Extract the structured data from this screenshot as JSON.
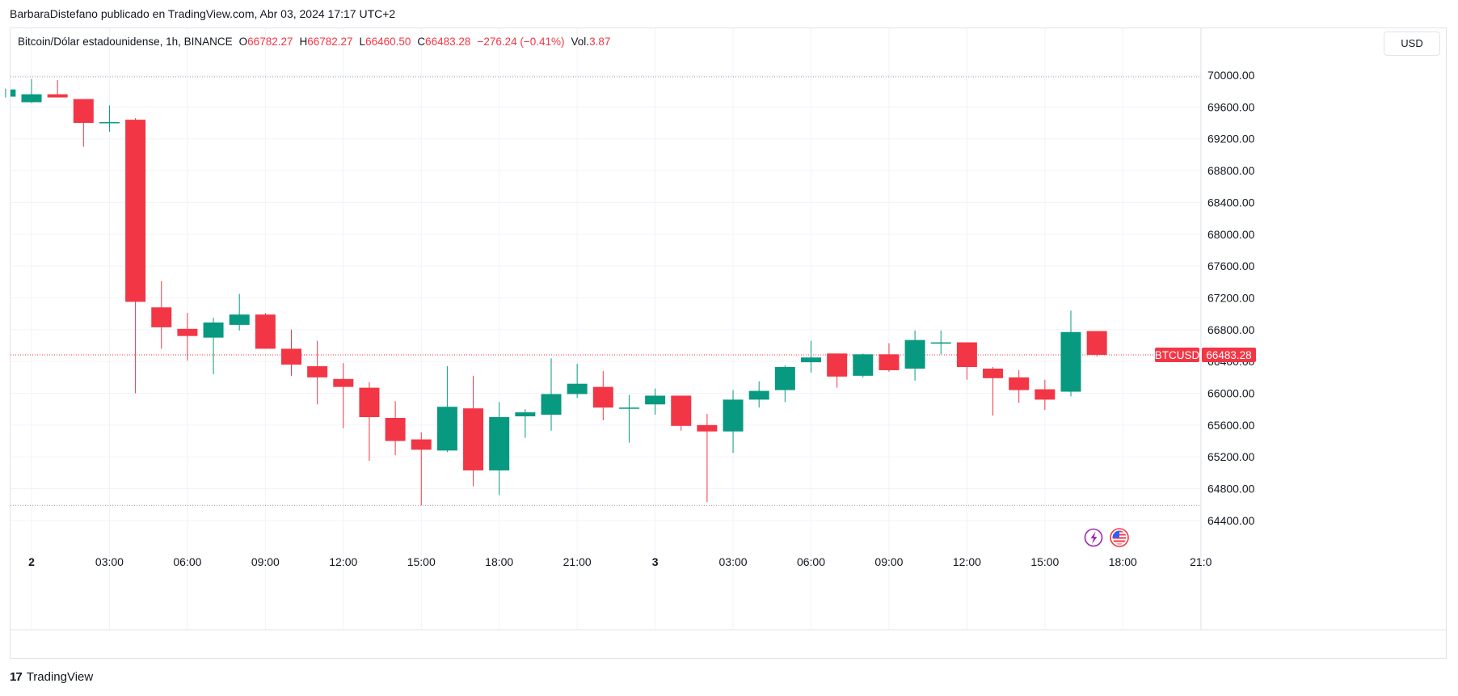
{
  "header": {
    "publisher": "BarbaraDistefano publicado en TradingView.com, Abr 03, 2024 17:17 UTC+2"
  },
  "legend": {
    "symbol": "Bitcoin/Dólar estadounidense, 1h, BINANCE",
    "o_label": "O",
    "o_value": "66782.27",
    "h_label": "H",
    "h_value": "66782.27",
    "l_label": "L",
    "l_value": "66460.50",
    "c_label": "C",
    "c_value": "66483.28",
    "change": "−276.24 (−0.41%)",
    "vol_label": "Vol.",
    "vol_value": "3.87"
  },
  "currency_button": "USD",
  "last_price": {
    "symbol": "BTCUSD",
    "value": "66483.28"
  },
  "footer": {
    "brand": "TradingView",
    "logo_mark": "17"
  },
  "colors": {
    "up": "#089981",
    "down": "#f23645",
    "grid": "#f0f3fa",
    "text": "#131722"
  },
  "icons": [
    "lightning-icon",
    "us-flag-icon"
  ],
  "chart_data": {
    "type": "candlestick",
    "interval": "1h",
    "y_ticks": [
      64400,
      64800,
      65200,
      65600,
      66000,
      66400,
      66800,
      67200,
      67600,
      68000,
      68400,
      68800,
      69200,
      69600,
      70000
    ],
    "y_tick_labels": [
      "64400.00",
      "64800.00",
      "65200.00",
      "65600.00",
      "66000.00",
      "66400.00",
      "66800.00",
      "67200.00",
      "67600.00",
      "68000.00",
      "68400.00",
      "68800.00",
      "69200.00",
      "69600.00",
      "70000.00"
    ],
    "x_tick_labels": [
      {
        "hour": 0,
        "label": "2"
      },
      {
        "hour": 3,
        "label": "03:00"
      },
      {
        "hour": 6,
        "label": "06:00"
      },
      {
        "hour": 9,
        "label": "09:00"
      },
      {
        "hour": 12,
        "label": "12:00"
      },
      {
        "hour": 15,
        "label": "15:00"
      },
      {
        "hour": 18,
        "label": "18:00"
      },
      {
        "hour": 21,
        "label": "21:00"
      },
      {
        "hour": 24,
        "label": "3"
      },
      {
        "hour": 27,
        "label": "03:00"
      },
      {
        "hour": 30,
        "label": "06:00"
      },
      {
        "hour": 33,
        "label": "09:00"
      },
      {
        "hour": 36,
        "label": "12:00"
      },
      {
        "hour": 39,
        "label": "15:00"
      },
      {
        "hour": 42,
        "label": "18:00"
      },
      {
        "hour": 45,
        "label": "21:0"
      }
    ],
    "range_high_line": 69980,
    "range_low_line": 64590,
    "last_price_value": 66483.28,
    "candles": [
      {
        "hour": -1,
        "o": 69730,
        "h": 69830,
        "l": 69720,
        "c": 69820
      },
      {
        "hour": 0,
        "o": 69660,
        "h": 69950,
        "l": 69650,
        "c": 69760
      },
      {
        "hour": 1,
        "o": 69760,
        "h": 69940,
        "l": 69720,
        "c": 69720
      },
      {
        "hour": 2,
        "o": 69700,
        "h": 69700,
        "l": 69100,
        "c": 69400
      },
      {
        "hour": 3,
        "o": 69400,
        "h": 69620,
        "l": 69290,
        "c": 69410
      },
      {
        "hour": 4,
        "o": 69440,
        "h": 69460,
        "l": 66000,
        "c": 67150
      },
      {
        "hour": 5,
        "o": 67080,
        "h": 67410,
        "l": 66560,
        "c": 66830
      },
      {
        "hour": 6,
        "o": 66810,
        "h": 67010,
        "l": 66410,
        "c": 66720
      },
      {
        "hour": 7,
        "o": 66700,
        "h": 66950,
        "l": 66240,
        "c": 66890
      },
      {
        "hour": 8,
        "o": 66860,
        "h": 67250,
        "l": 66790,
        "c": 66990
      },
      {
        "hour": 9,
        "o": 66990,
        "h": 67010,
        "l": 66560,
        "c": 66560
      },
      {
        "hour": 10,
        "o": 66560,
        "h": 66800,
        "l": 66220,
        "c": 66360
      },
      {
        "hour": 11,
        "o": 66340,
        "h": 66660,
        "l": 65860,
        "c": 66200
      },
      {
        "hour": 12,
        "o": 66180,
        "h": 66380,
        "l": 65560,
        "c": 66080
      },
      {
        "hour": 13,
        "o": 66070,
        "h": 66140,
        "l": 65150,
        "c": 65700
      },
      {
        "hour": 14,
        "o": 65690,
        "h": 65900,
        "l": 65220,
        "c": 65400
      },
      {
        "hour": 15,
        "o": 65420,
        "h": 65510,
        "l": 64590,
        "c": 65290
      },
      {
        "hour": 16,
        "o": 65280,
        "h": 66340,
        "l": 65260,
        "c": 65830
      },
      {
        "hour": 17,
        "o": 65810,
        "h": 66220,
        "l": 64830,
        "c": 65030
      },
      {
        "hour": 18,
        "o": 65030,
        "h": 65890,
        "l": 64720,
        "c": 65700
      },
      {
        "hour": 19,
        "o": 65710,
        "h": 65800,
        "l": 65440,
        "c": 65760
      },
      {
        "hour": 20,
        "o": 65730,
        "h": 66440,
        "l": 65530,
        "c": 65990
      },
      {
        "hour": 21,
        "o": 65990,
        "h": 66370,
        "l": 65940,
        "c": 66120
      },
      {
        "hour": 22,
        "o": 66080,
        "h": 66280,
        "l": 65660,
        "c": 65820
      },
      {
        "hour": 23,
        "o": 65820,
        "h": 65980,
        "l": 65380,
        "c": 65820
      },
      {
        "hour": 24,
        "o": 65860,
        "h": 66060,
        "l": 65730,
        "c": 65970
      },
      {
        "hour": 25,
        "o": 65970,
        "h": 65970,
        "l": 65530,
        "c": 65590
      },
      {
        "hour": 26,
        "o": 65600,
        "h": 65740,
        "l": 64630,
        "c": 65520
      },
      {
        "hour": 27,
        "o": 65520,
        "h": 66040,
        "l": 65250,
        "c": 65920
      },
      {
        "hour": 28,
        "o": 65920,
        "h": 66150,
        "l": 65820,
        "c": 66030
      },
      {
        "hour": 29,
        "o": 66040,
        "h": 66350,
        "l": 65890,
        "c": 66330
      },
      {
        "hour": 30,
        "o": 66390,
        "h": 66660,
        "l": 66260,
        "c": 66450
      },
      {
        "hour": 31,
        "o": 66500,
        "h": 66500,
        "l": 66070,
        "c": 66210
      },
      {
        "hour": 32,
        "o": 66220,
        "h": 66500,
        "l": 66200,
        "c": 66490
      },
      {
        "hour": 33,
        "o": 66490,
        "h": 66630,
        "l": 66270,
        "c": 66290
      },
      {
        "hour": 34,
        "o": 66310,
        "h": 66790,
        "l": 66160,
        "c": 66670
      },
      {
        "hour": 35,
        "o": 66640,
        "h": 66790,
        "l": 66490,
        "c": 66640
      },
      {
        "hour": 36,
        "o": 66640,
        "h": 66640,
        "l": 66170,
        "c": 66330
      },
      {
        "hour": 37,
        "o": 66310,
        "h": 66330,
        "l": 65720,
        "c": 66190
      },
      {
        "hour": 38,
        "o": 66200,
        "h": 66290,
        "l": 65880,
        "c": 66040
      },
      {
        "hour": 39,
        "o": 66050,
        "h": 66170,
        "l": 65790,
        "c": 65920
      },
      {
        "hour": 40,
        "o": 66020,
        "h": 67040,
        "l": 65960,
        "c": 66770
      },
      {
        "hour": 41,
        "o": 66782.27,
        "h": 66782.27,
        "l": 66460.5,
        "c": 66483.28
      }
    ]
  }
}
